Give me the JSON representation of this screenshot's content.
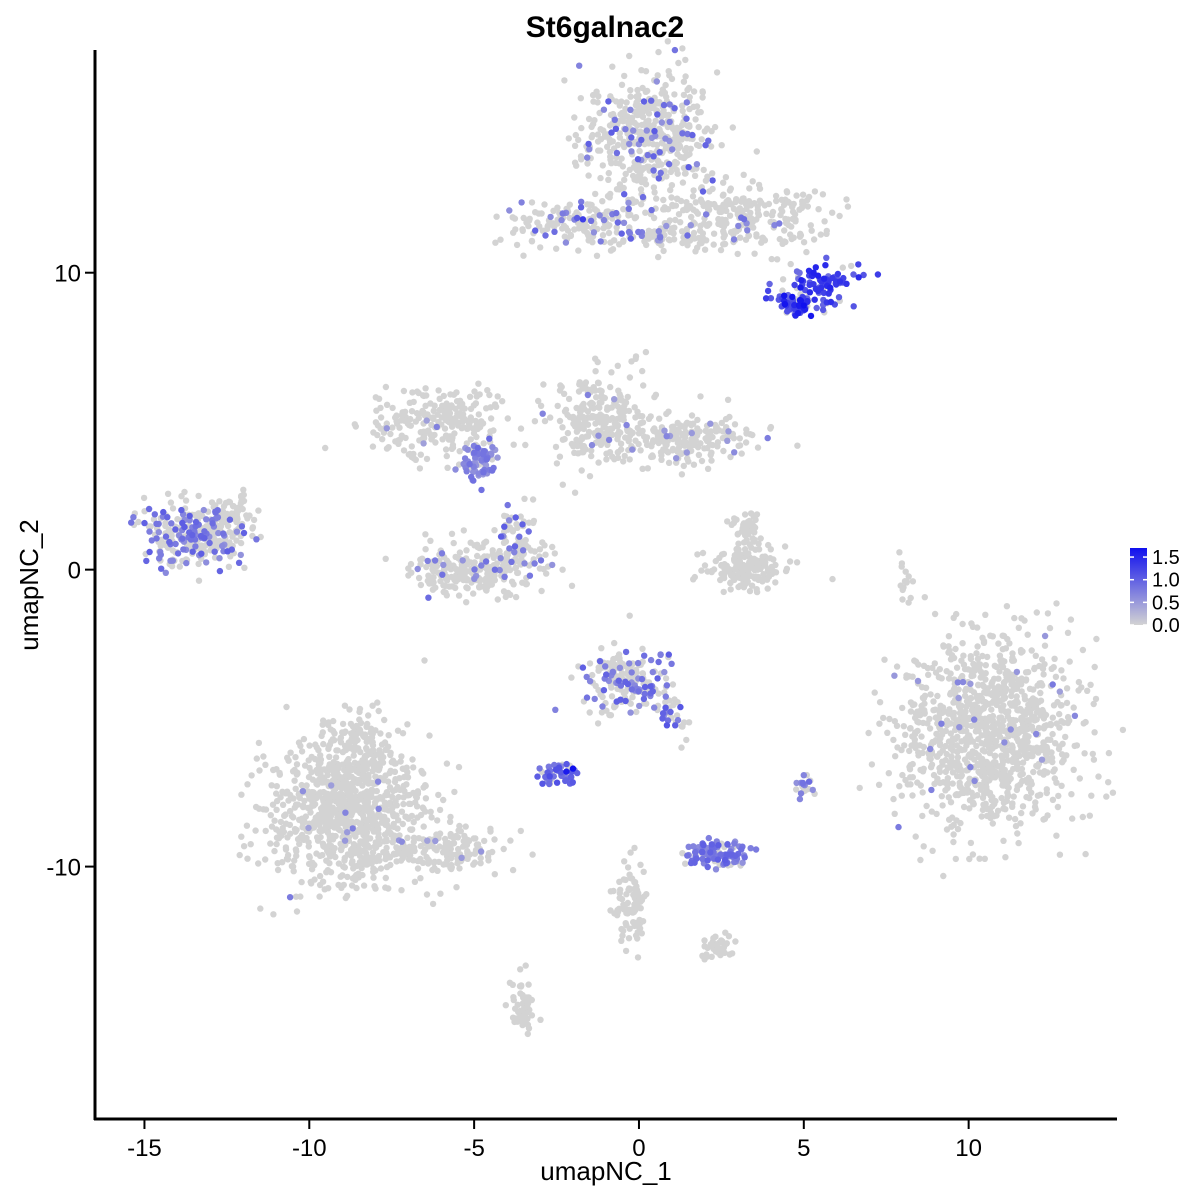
{
  "chart_data": {
    "type": "scatter",
    "title": "St6galnac2",
    "xlabel": "umapNC_1",
    "ylabel": "umapNC_2",
    "xlim": [
      -16.5,
      14.5
    ],
    "ylim": [
      -18.5,
      17.5
    ],
    "xticks": [
      -15,
      -10,
      -5,
      0,
      5,
      10
    ],
    "yticks": [
      -10,
      0,
      10
    ],
    "xtick_labels": [
      "-15",
      "-10",
      "-5",
      "0",
      "5",
      "10"
    ],
    "ytick_labels": [
      "-10",
      "0",
      "10"
    ],
    "grid": false,
    "legend": {
      "placement": "right",
      "type": "colorbar",
      "labels": [
        "1.5",
        "1.0",
        "0.5",
        "0.0"
      ],
      "values": [
        1.5,
        1.0,
        0.5,
        0.0
      ],
      "range": [
        0,
        1.7
      ]
    },
    "colors": {
      "low": "#d3d3d3",
      "high": "#1010ee"
    },
    "clusters": [
      {
        "cx": 0.3,
        "cy": 14.5,
        "sx": 1.0,
        "sy": 1.1,
        "n": 480,
        "expr_frac": 0.1,
        "expr_level": 0.8
      },
      {
        "cx": 3.0,
        "cy": 11.8,
        "sx": 1.4,
        "sy": 0.6,
        "n": 260,
        "expr_frac": 0.05,
        "expr_level": 0.7
      },
      {
        "cx": -2.0,
        "cy": 11.7,
        "sx": 1.1,
        "sy": 0.4,
        "n": 160,
        "expr_frac": 0.2,
        "expr_level": 0.8
      },
      {
        "cx": 0.8,
        "cy": 11.2,
        "sx": 0.7,
        "sy": 0.2,
        "n": 50,
        "expr_frac": 0.1,
        "expr_level": 0.6
      },
      {
        "cx": 5.5,
        "cy": 9.6,
        "sx": 0.6,
        "sy": 0.35,
        "n": 90,
        "expr_frac": 0.8,
        "expr_level": 1.2
      },
      {
        "cx": 4.8,
        "cy": 8.9,
        "sx": 0.3,
        "sy": 0.2,
        "n": 60,
        "expr_frac": 0.95,
        "expr_level": 1.3
      },
      {
        "cx": -6.2,
        "cy": 5.0,
        "sx": 1.0,
        "sy": 0.6,
        "n": 230,
        "expr_frac": 0.02,
        "expr_level": 0.6
      },
      {
        "cx": -4.8,
        "cy": 3.7,
        "sx": 0.3,
        "sy": 0.3,
        "n": 70,
        "expr_frac": 0.9,
        "expr_level": 0.7
      },
      {
        "cx": -1.2,
        "cy": 5.0,
        "sx": 0.7,
        "sy": 0.8,
        "n": 240,
        "expr_frac": 0.03,
        "expr_level": 0.6
      },
      {
        "cx": 1.5,
        "cy": 4.4,
        "sx": 1.0,
        "sy": 0.4,
        "n": 200,
        "expr_frac": 0.06,
        "expr_level": 0.6
      },
      {
        "cx": -13.4,
        "cy": 1.2,
        "sx": 0.8,
        "sy": 0.55,
        "n": 300,
        "expr_frac": 0.3,
        "expr_level": 0.8
      },
      {
        "cx": -4.9,
        "cy": 0.0,
        "sx": 1.0,
        "sy": 0.4,
        "n": 280,
        "expr_frac": 0.06,
        "expr_level": 0.7
      },
      {
        "cx": -3.8,
        "cy": 1.0,
        "sx": 0.4,
        "sy": 0.5,
        "n": 70,
        "expr_frac": 0.25,
        "expr_level": 0.8
      },
      {
        "cx": 3.3,
        "cy": 0.0,
        "sx": 0.6,
        "sy": 0.35,
        "n": 160,
        "expr_frac": 0.0,
        "expr_level": 0.0
      },
      {
        "cx": 3.2,
        "cy": 1.1,
        "sx": 0.25,
        "sy": 0.4,
        "n": 60,
        "expr_frac": 0.0,
        "expr_level": 0.0
      },
      {
        "cx": 10.6,
        "cy": -5.5,
        "sx": 1.3,
        "sy": 1.6,
        "n": 1100,
        "expr_frac": 0.02,
        "expr_level": 0.6
      },
      {
        "cx": -0.5,
        "cy": -3.7,
        "sx": 0.6,
        "sy": 0.6,
        "n": 180,
        "expr_frac": 0.28,
        "expr_level": 0.8
      },
      {
        "cx": 0.9,
        "cy": -4.7,
        "sx": 0.3,
        "sy": 0.5,
        "n": 40,
        "expr_frac": 0.4,
        "expr_level": 0.9
      },
      {
        "cx": -2.4,
        "cy": -6.9,
        "sx": 0.3,
        "sy": 0.2,
        "n": 50,
        "expr_frac": 0.7,
        "expr_level": 0.9
      },
      {
        "cx": -8.8,
        "cy": -8.2,
        "sx": 1.2,
        "sy": 1.2,
        "n": 950,
        "expr_frac": 0.012,
        "expr_level": 0.6
      },
      {
        "cx": -8.5,
        "cy": -6.0,
        "sx": 0.5,
        "sy": 0.6,
        "n": 120,
        "expr_frac": 0.01,
        "expr_level": 0.5
      },
      {
        "cx": -5.8,
        "cy": -9.5,
        "sx": 0.9,
        "sy": 0.35,
        "n": 120,
        "expr_frac": 0.03,
        "expr_level": 0.6
      },
      {
        "cx": 2.4,
        "cy": -9.6,
        "sx": 0.5,
        "sy": 0.2,
        "n": 110,
        "expr_frac": 0.75,
        "expr_level": 0.8
      },
      {
        "cx": -0.2,
        "cy": -11.2,
        "sx": 0.25,
        "sy": 0.7,
        "n": 90,
        "expr_frac": 0.0,
        "expr_level": 0.0
      },
      {
        "cx": 2.4,
        "cy": -12.7,
        "sx": 0.25,
        "sy": 0.2,
        "n": 45,
        "expr_frac": 0.0,
        "expr_level": 0.0
      },
      {
        "cx": -3.5,
        "cy": -14.7,
        "sx": 0.2,
        "sy": 0.5,
        "n": 60,
        "expr_frac": 0.0,
        "expr_level": 0.0
      },
      {
        "cx": 5.0,
        "cy": -7.3,
        "sx": 0.15,
        "sy": 0.25,
        "n": 20,
        "expr_frac": 0.5,
        "expr_level": 0.7
      },
      {
        "cx": 8.1,
        "cy": -0.4,
        "sx": 0.1,
        "sy": 0.4,
        "n": 15,
        "expr_frac": 0.0,
        "expr_level": 0.0
      },
      {
        "cx": -12.2,
        "cy": 2.0,
        "sx": 0.25,
        "sy": 0.3,
        "n": 35,
        "expr_frac": 0.0,
        "expr_level": 0.0
      }
    ],
    "highlight_points": [
      {
        "x": 5.0,
        "y": 8.9,
        "v": 1.7
      },
      {
        "x": 4.9,
        "y": 9.5,
        "v": 1.6
      },
      {
        "x": -2.0,
        "y": -6.7,
        "v": 1.7
      },
      {
        "x": -2.2,
        "y": -6.8,
        "v": 1.6
      },
      {
        "x": 6.1,
        "y": 9.7,
        "v": 1.4
      },
      {
        "x": -1.7,
        "y": 11.8,
        "v": 1.3
      }
    ]
  }
}
